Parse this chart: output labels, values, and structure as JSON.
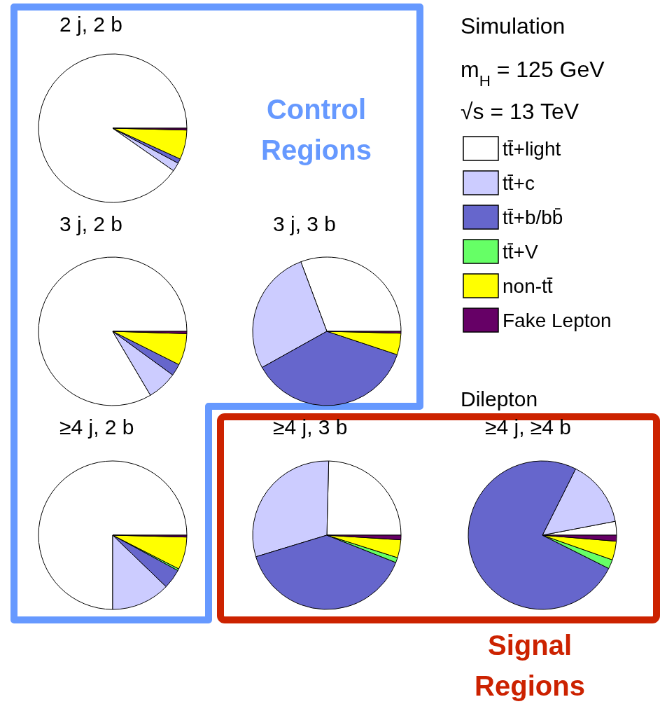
{
  "chart_data": [
    {
      "type": "pie",
      "title": "2 j, 2 b",
      "legend": "right",
      "categories": [
        "tt̄+light",
        "tt̄+c",
        "tt̄+b/bb̄",
        "tt̄+V",
        "non-tt̄",
        "Fake Lepton"
      ],
      "values": [
        90.3,
        1.9,
        1.0,
        null,
        6.4,
        0.4
      ],
      "colors": [
        "#ffffff",
        "#ccccff",
        "#6666cc",
        "#66ff66",
        "#ffff00",
        "#660066"
      ]
    },
    {
      "type": "pie",
      "title": "3 j, 2 b",
      "categories": [
        null,
        null,
        null,
        null,
        null,
        null
      ],
      "values": [
        83.5,
        6.5,
        2.6,
        null,
        6.9,
        0.5
      ],
      "colors": [
        "#ffffff",
        "#ccccff",
        "#6666cc",
        null,
        "#ffff00",
        "#660066"
      ]
    },
    {
      "type": "pie",
      "title": "3 j, 3 b",
      "categories": [
        null,
        null,
        null,
        null,
        null,
        null
      ],
      "values": [
        30.7,
        27.4,
        36.8,
        null,
        4.7,
        0.4
      ],
      "colors": [
        "#ffffff",
        "#ccccff",
        "#6666cc",
        null,
        "#ffff00",
        "#660066"
      ]
    },
    {
      "type": "pie",
      "title": "≥4 j, 2 b",
      "categories": [
        null,
        null,
        null,
        null,
        null,
        null
      ],
      "values": [
        75.0,
        12.8,
        4.3,
        0.4,
        7.1,
        0.4
      ],
      "colors": [
        "#ffffff",
        "#ccccff",
        "#6666cc",
        "#66ff66",
        "#ffff00",
        "#660066"
      ]
    },
    {
      "type": "pie",
      "title": "≥4 j, 3 b",
      "categories": [
        null,
        null,
        null,
        null,
        null,
        null
      ],
      "values": [
        24.6,
        30.1,
        39.3,
        1.1,
        3.9,
        1.0
      ],
      "colors": [
        "#ffffff",
        "#ccccff",
        "#6666cc",
        "#66ff66",
        "#ffff00",
        "#660066"
      ]
    },
    {
      "type": "pie",
      "title": "≥4 j, ≥4 b",
      "categories": [
        null,
        null,
        null,
        null,
        null,
        null
      ],
      "values": [
        3.0,
        14.6,
        75.0,
        2.0,
        4.1,
        1.3
      ],
      "colors": [
        "#ffffff",
        "#ccccff",
        "#6666cc",
        "#66ff66",
        "#ffff00",
        "#660066"
      ]
    },
    {
      "type": "other",
      "annotations": [
        "Simulation",
        "m$_{H}$ = 125 GeV",
        "√s = 13 TeV",
        "Dilepton",
        "Control Regions",
        "Signal Regions"
      ]
    }
  ]
}
